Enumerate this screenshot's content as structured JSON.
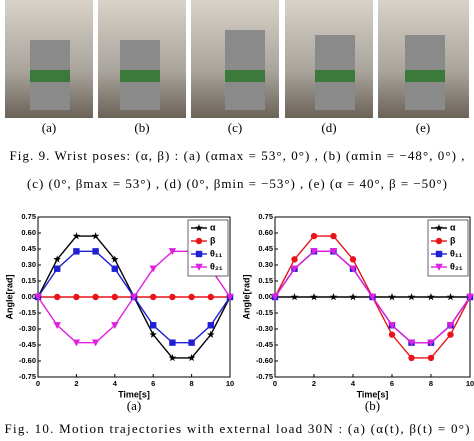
{
  "figure9": {
    "labels": [
      "(a)",
      "(b)",
      "(c)",
      "(d)",
      "(e)"
    ],
    "caption_lines": [
      "Fig. 9. Wrist poses: (α, β) : (a) (αmax = 53°, 0°) , (b) (αmin = −48°, 0°) ,",
      "(c) (0°, βmax = 53°) , (d) (0°, βmin = −53°) , (e) (α = 40°, β = −50°)"
    ]
  },
  "chart_data": [
    {
      "type": "line",
      "sublabel": "(a)",
      "x_label": "Time[s]",
      "y_label": "Angle[rad]",
      "x": [
        0,
        1,
        2,
        3,
        4,
        5,
        6,
        7,
        8,
        9,
        10
      ],
      "xlim": [
        0,
        10
      ],
      "xticks": [
        0,
        2,
        4,
        6,
        8,
        10
      ],
      "ylim": [
        -0.75,
        0.75
      ],
      "yticks": [
        -0.75,
        {
          "value": -0.6,
          "label": "-0.60"
        },
        -0.45,
        {
          "value": -0.3,
          "label": "-0.30"
        },
        -0.15,
        {
          "value": 0,
          "label": "0.00"
        },
        0.15,
        {
          "value": 0.3,
          "label": "0.30"
        },
        0.45,
        {
          "value": 0.6,
          "label": "0.60"
        },
        0.75
      ],
      "legend": "upper-right",
      "series": [
        {
          "name": "α",
          "color": "#000000",
          "marker": "star",
          "values": [
            0,
            0.353,
            0.571,
            0.571,
            0.353,
            0,
            -0.353,
            -0.571,
            -0.571,
            -0.353,
            0
          ]
        },
        {
          "name": "β",
          "color": "#e8141a",
          "marker": "circle",
          "values": [
            0,
            0,
            0,
            0,
            0,
            0,
            0,
            0,
            0,
            0,
            0
          ]
        },
        {
          "name": "θ₁₁",
          "color": "#1f1fd6",
          "marker": "square",
          "values": [
            0,
            0.265,
            0.428,
            0.428,
            0.265,
            0,
            -0.265,
            -0.428,
            -0.428,
            -0.265,
            0
          ]
        },
        {
          "name": "θ₂₁",
          "color": "#e020e0",
          "marker": "triangle-down",
          "values": [
            0,
            -0.265,
            -0.428,
            -0.428,
            -0.265,
            0,
            0.265,
            0.428,
            0.428,
            0.265,
            0
          ]
        }
      ]
    },
    {
      "type": "line",
      "sublabel": "(b)",
      "x_label": "Time[s]",
      "y_label": "Angle[rad]",
      "x": [
        0,
        1,
        2,
        3,
        4,
        5,
        6,
        7,
        8,
        9,
        10
      ],
      "xlim": [
        0,
        10
      ],
      "xticks": [
        0,
        2,
        4,
        6,
        8,
        10
      ],
      "ylim": [
        -0.75,
        0.75
      ],
      "yticks": [
        -0.75,
        {
          "value": -0.6,
          "label": "-0.60"
        },
        -0.45,
        {
          "value": -0.3,
          "label": "-0.30"
        },
        -0.15,
        {
          "value": 0,
          "label": "0.00"
        },
        0.15,
        {
          "value": 0.3,
          "label": "0.30"
        },
        0.45,
        {
          "value": 0.6,
          "label": "0.60"
        },
        0.75
      ],
      "legend": "upper-right",
      "series": [
        {
          "name": "α",
          "color": "#000000",
          "marker": "star",
          "values": [
            0,
            0,
            0,
            0,
            0,
            0,
            0,
            0,
            0,
            0,
            0
          ]
        },
        {
          "name": "β",
          "color": "#e8141a",
          "marker": "circle",
          "values": [
            0,
            0.353,
            0.571,
            0.571,
            0.353,
            0,
            -0.353,
            -0.571,
            -0.571,
            -0.353,
            0
          ]
        },
        {
          "name": "θ₁₁",
          "color": "#1f1fd6",
          "marker": "square",
          "values": [
            0,
            0.265,
            0.428,
            0.428,
            0.265,
            0,
            -0.265,
            -0.428,
            -0.428,
            -0.265,
            0
          ]
        },
        {
          "name": "θ₂₁",
          "color": "#e020e0",
          "marker": "triangle-down",
          "values": [
            0,
            0.265,
            0.428,
            0.428,
            0.265,
            0,
            -0.265,
            -0.428,
            -0.428,
            -0.265,
            0
          ]
        }
      ]
    }
  ],
  "figure10": {
    "caption": "Fig. 10. Motion trajectories with external load 30N : (a) (α(t), β(t) = 0°)"
  }
}
